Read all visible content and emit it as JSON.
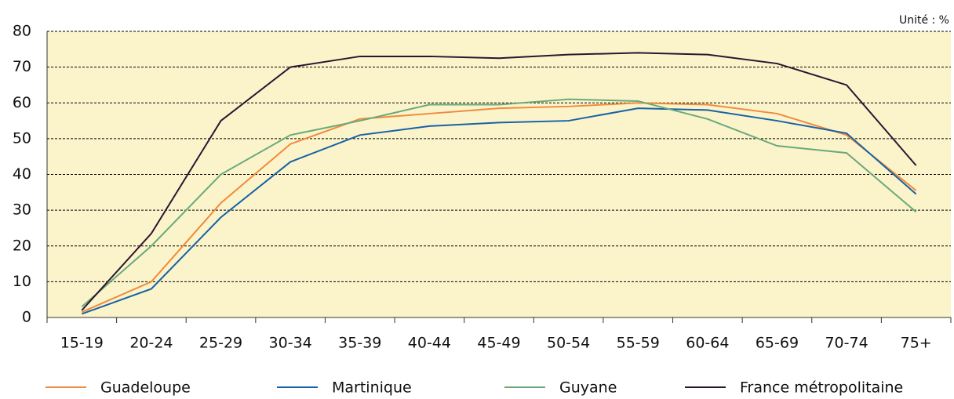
{
  "chart_data": {
    "type": "line",
    "title": "Unité : %",
    "categories": [
      "15-19",
      "20-24",
      "25-29",
      "30-34",
      "35-39",
      "40-44",
      "45-49",
      "50-54",
      "55-59",
      "60-64",
      "65-69",
      "70-74",
      "75+"
    ],
    "series": [
      {
        "name": "Guadeloupe",
        "color": "#f08a3c",
        "values": [
          1.5,
          10,
          32,
          48.5,
          55.5,
          57,
          58.5,
          59,
          60,
          59.5,
          57,
          51,
          35.5
        ]
      },
      {
        "name": "Martinique",
        "color": "#1662a6",
        "values": [
          1,
          8,
          28,
          43.5,
          51,
          53.5,
          54.5,
          55,
          58.5,
          58,
          55,
          51.5,
          34.5
        ]
      },
      {
        "name": "Guyane",
        "color": "#6aa97a",
        "values": [
          3,
          20,
          40,
          51,
          55,
          59.5,
          59.5,
          61,
          60.5,
          55.5,
          48,
          46,
          29.5
        ]
      },
      {
        "name": "France métropolitaine",
        "color": "#2b1530",
        "values": [
          2,
          23.5,
          55,
          70,
          73,
          73,
          72.5,
          73.5,
          74,
          73.5,
          71,
          65,
          42.5
        ]
      }
    ],
    "ylim": [
      0,
      80
    ],
    "yticks": [
      0,
      10,
      20,
      30,
      40,
      50,
      60,
      70,
      80
    ],
    "grid": true
  }
}
